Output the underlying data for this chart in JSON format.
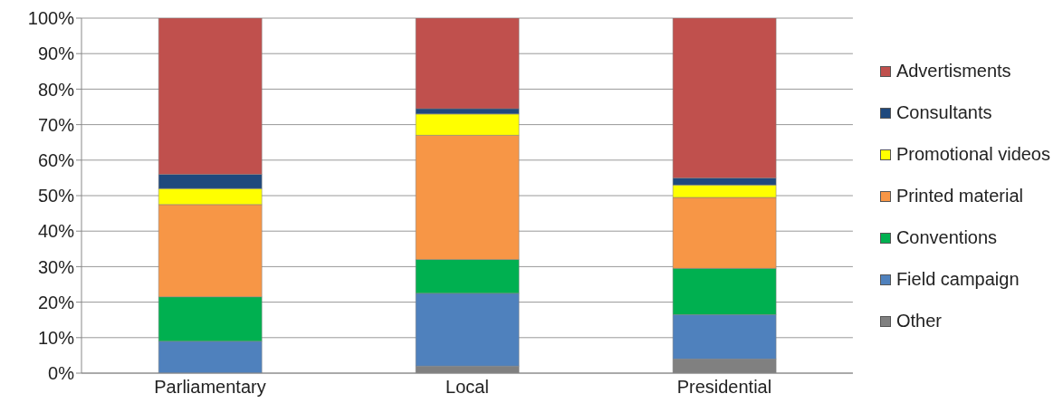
{
  "chart_data": {
    "type": "bar",
    "stacked": true,
    "categories": [
      "Parliamentary",
      "Local",
      "Presidential"
    ],
    "series": [
      {
        "name": "Other",
        "color": "#808080",
        "values": [
          null,
          2,
          4
        ]
      },
      {
        "name": "Field campaign",
        "color": "#4f81bd",
        "values": [
          9,
          20.5,
          12.5
        ]
      },
      {
        "name": "Conventions",
        "color": "#00b050",
        "values": [
          12.5,
          9.5,
          13
        ]
      },
      {
        "name": "Printed material",
        "color": "#f79646",
        "values": [
          26,
          35,
          20
        ]
      },
      {
        "name": "Promotional videos",
        "color": "#ffff00",
        "values": [
          4.5,
          6,
          3.5
        ]
      },
      {
        "name": "Consultants",
        "color": "#1f497d",
        "values": [
          4,
          1.5,
          2
        ]
      },
      {
        "name": "Advertisments",
        "color": "#c0504d",
        "values": [
          44,
          25.5,
          45
        ]
      }
    ],
    "ylim": [
      0,
      100
    ],
    "yticks": [
      {
        "value": 0,
        "label": "0%"
      },
      {
        "value": 10,
        "label": "10%"
      },
      {
        "value": 20,
        "label": "20%"
      },
      {
        "value": 30,
        "label": "30%"
      },
      {
        "value": 40,
        "label": "40%"
      },
      {
        "value": 50,
        "label": "50%"
      },
      {
        "value": 60,
        "label": "60%"
      },
      {
        "value": 70,
        "label": "70%"
      },
      {
        "value": 80,
        "label": "80%"
      },
      {
        "value": 90,
        "label": "90%"
      },
      {
        "value": 100,
        "label": "100%"
      }
    ],
    "grid": "y",
    "legend": "right"
  }
}
